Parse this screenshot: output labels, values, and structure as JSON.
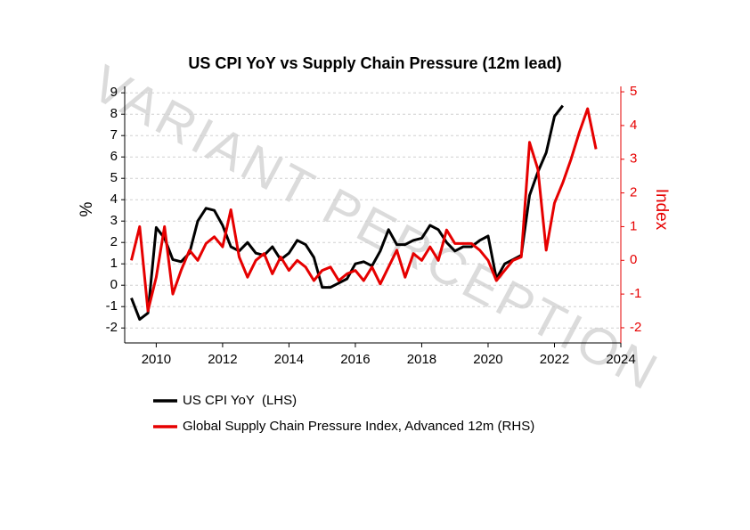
{
  "chart_data": {
    "type": "line",
    "title": "US CPI YoY vs Supply Chain Pressure (12m lead)",
    "y_label": "%",
    "y2_label": "Index",
    "watermark": "VARIANT PERCEPTION",
    "x": [
      2009.25,
      2009.5,
      2009.75,
      2010.0,
      2010.25,
      2010.5,
      2010.75,
      2011.0,
      2011.25,
      2011.5,
      2011.75,
      2012.0,
      2012.25,
      2012.5,
      2012.75,
      2013.0,
      2013.25,
      2013.5,
      2013.75,
      2014.0,
      2014.25,
      2014.5,
      2014.75,
      2015.0,
      2015.25,
      2015.5,
      2015.75,
      2016.0,
      2016.25,
      2016.5,
      2016.75,
      2017.0,
      2017.25,
      2017.5,
      2017.75,
      2018.0,
      2018.25,
      2018.5,
      2018.75,
      2019.0,
      2019.25,
      2019.5,
      2019.75,
      2020.0,
      2020.25,
      2020.5,
      2020.75,
      2021.0,
      2021.25,
      2021.5,
      2021.75,
      2022.0,
      2022.25,
      2022.5,
      2022.75,
      2023.0,
      2023.25
    ],
    "xlim": [
      2009.05,
      2024
    ],
    "xticks": [
      2010,
      2012,
      2014,
      2016,
      2018,
      2020,
      2022,
      2024
    ],
    "ylim": [
      -2.7,
      9.3
    ],
    "yticks": [
      -2,
      -1,
      0,
      1,
      2,
      3,
      4,
      5,
      6,
      7,
      8,
      9
    ],
    "y2lim": [
      -2.45,
      5.16
    ],
    "y2ticks": [
      -2,
      -1,
      0,
      1,
      2,
      3,
      4,
      5
    ],
    "grid": true,
    "series": [
      {
        "name": "US CPI YoY  (LHS)",
        "color": "#000000",
        "values": [
          -0.6,
          -1.6,
          -1.3,
          2.7,
          2.2,
          1.2,
          1.1,
          1.5,
          3.0,
          3.6,
          3.5,
          2.8,
          1.8,
          1.6,
          2.0,
          1.5,
          1.4,
          1.8,
          1.2,
          1.5,
          2.1,
          1.9,
          1.3,
          -0.1,
          -0.1,
          0.1,
          0.3,
          1.0,
          1.1,
          0.9,
          1.6,
          2.6,
          1.9,
          1.9,
          2.1,
          2.2,
          2.8,
          2.6,
          2.0,
          1.6,
          1.8,
          1.8,
          2.1,
          2.3,
          0.3,
          1.0,
          1.2,
          1.4,
          4.2,
          5.3,
          6.2,
          7.9,
          8.4,
          null,
          null,
          null,
          null
        ]
      },
      {
        "name": "Global Supply Chain Pressure Index, Advanced 12m (RHS)",
        "color": "#e60000",
        "axis": "y2",
        "values": [
          0.0,
          1.0,
          -1.5,
          -0.5,
          1.0,
          -1.0,
          -0.3,
          0.3,
          0.0,
          0.5,
          0.7,
          0.4,
          1.5,
          0.1,
          -0.5,
          0.0,
          0.2,
          -0.4,
          0.1,
          -0.3,
          0.0,
          -0.2,
          -0.6,
          -0.3,
          -0.2,
          -0.6,
          -0.4,
          -0.3,
          -0.6,
          -0.2,
          -0.7,
          -0.2,
          0.3,
          -0.5,
          0.2,
          0.0,
          0.4,
          0.0,
          0.9,
          0.5,
          0.5,
          0.5,
          0.3,
          0.0,
          -0.6,
          -0.3,
          0.0,
          0.1,
          3.5,
          2.7,
          0.3,
          1.7,
          2.3,
          3.0,
          3.8,
          4.5,
          3.3
        ]
      }
    ]
  }
}
